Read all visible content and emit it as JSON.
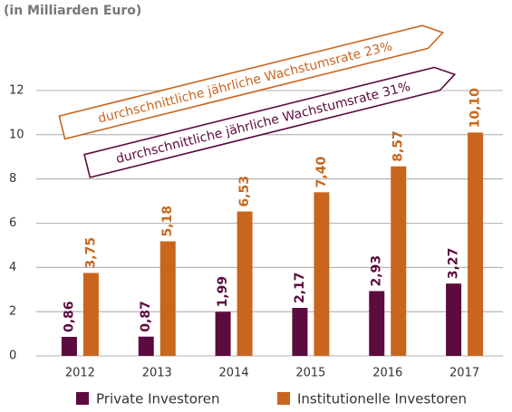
{
  "chart_data": {
    "type": "bar",
    "title": "(in Milliarden Euro)",
    "categories": [
      "2012",
      "2013",
      "2014",
      "2015",
      "2016",
      "2017"
    ],
    "series": [
      {
        "name": "Private Investoren",
        "color": "#5c0b3e",
        "values": [
          0.86,
          0.87,
          1.99,
          2.17,
          2.93,
          3.27
        ],
        "value_labels": [
          "0,86",
          "0,87",
          "1,99",
          "2,17",
          "2,93",
          "3,27"
        ]
      },
      {
        "name": "Institutionelle Investoren",
        "color": "#c9661e",
        "values": [
          3.75,
          5.18,
          6.53,
          7.4,
          8.57,
          10.1
        ],
        "value_labels": [
          "3,75",
          "5,18",
          "6,53",
          "7,40",
          "8,57",
          "10,10"
        ]
      }
    ],
    "annotations": [
      {
        "text": "durchschnittliche jährliche Wachstumsrate 23%",
        "color": "#c9661e"
      },
      {
        "text": "durchschnittliche jährliche Wachstumsrate 31%",
        "color": "#5c0b3e"
      }
    ],
    "ylim": [
      0,
      12
    ],
    "yticks": [
      0,
      2,
      4,
      6,
      8,
      10,
      12
    ],
    "grid": true
  }
}
